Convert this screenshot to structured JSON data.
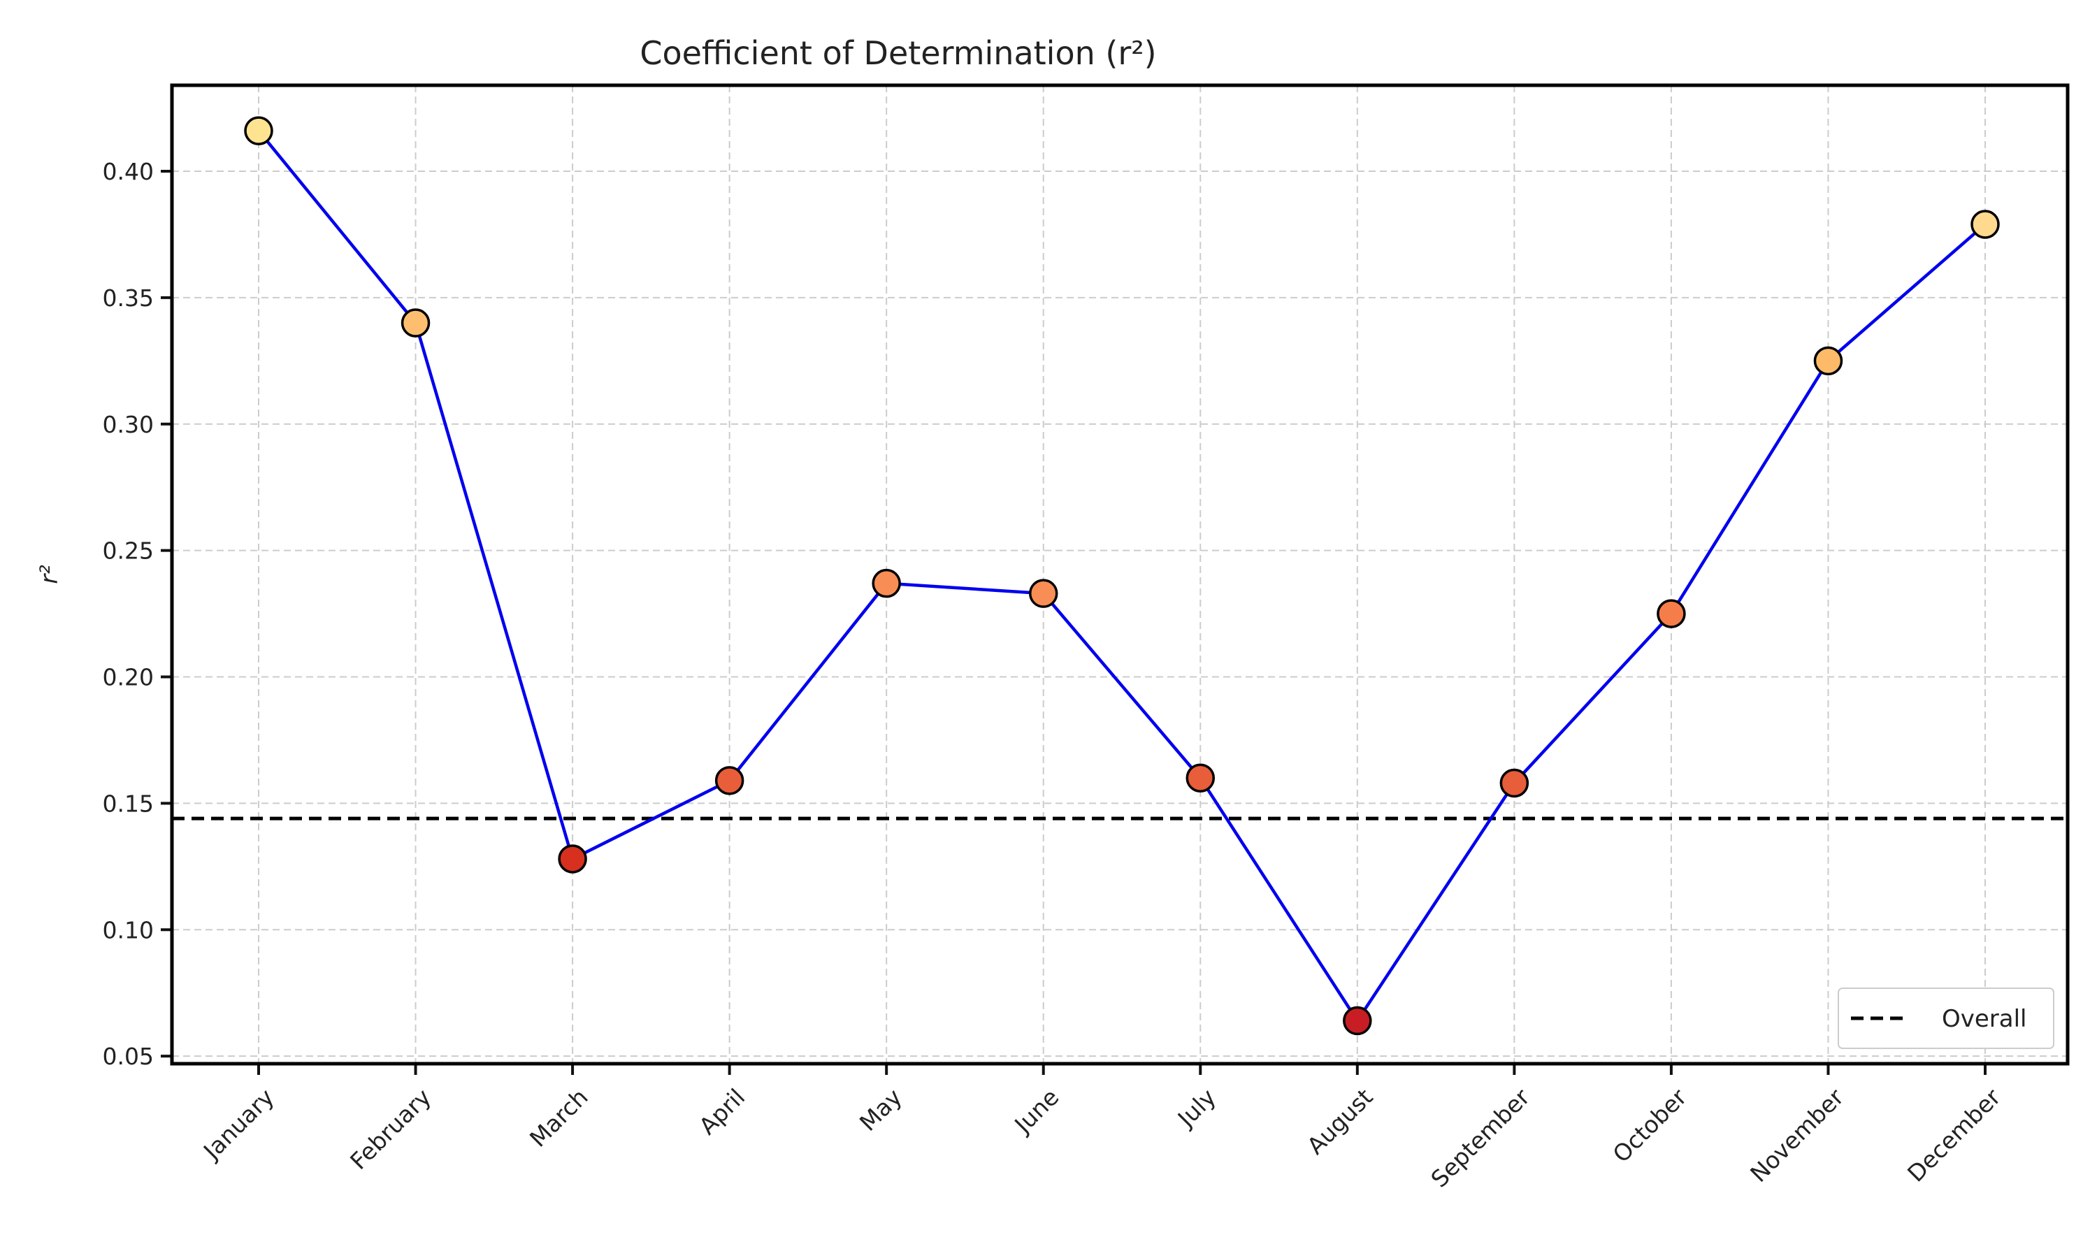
{
  "chart_data": {
    "type": "line",
    "title": "Coefficient of Determination (r²)",
    "xlabel": "",
    "ylabel": "r²",
    "categories": [
      "January",
      "February",
      "March",
      "April",
      "May",
      "June",
      "July",
      "August",
      "September",
      "October",
      "November",
      "December"
    ],
    "series": [
      {
        "values": [
          0.416,
          0.34,
          0.128,
          0.159,
          0.237,
          0.233,
          0.16,
          0.064,
          0.158,
          0.225,
          0.325,
          0.379
        ],
        "line_color": "#0000ee",
        "marker_colors": [
          "#fee391",
          "#fdbf6f",
          "#d7301f",
          "#e85d3a",
          "#f88e55",
          "#f88e55",
          "#e85d3a",
          "#c81d25",
          "#e85d3a",
          "#f57d4a",
          "#fdbb6a",
          "#fed98e"
        ]
      }
    ],
    "reference_lines": [
      {
        "name": "Overall",
        "value": 0.144,
        "style": "dashed",
        "color": "#000000"
      }
    ],
    "yticks": [
      "0.05",
      "0.10",
      "0.15",
      "0.20",
      "0.25",
      "0.30",
      "0.35",
      "0.40"
    ],
    "ylim": [
      0.047,
      0.434
    ],
    "grid": true,
    "legend": {
      "placement": "lower-right",
      "entries": [
        "Overall"
      ]
    }
  }
}
